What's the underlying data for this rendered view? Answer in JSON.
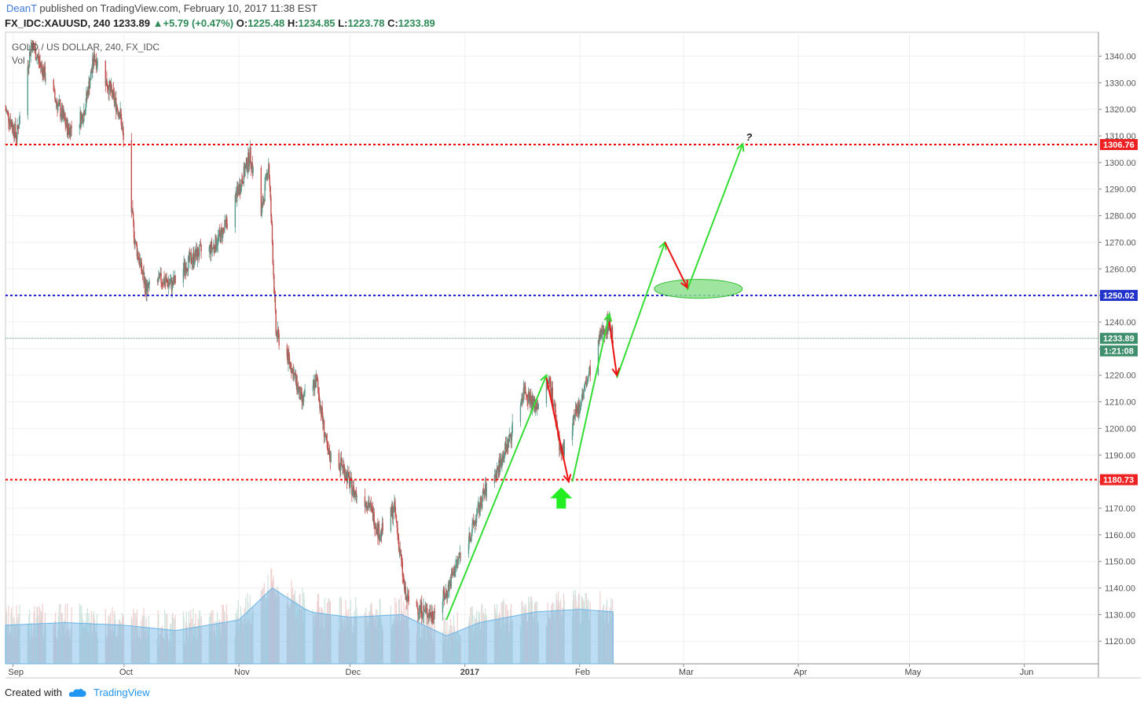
{
  "header": {
    "author": "DeanT",
    "published_text": "published on TradingView.com, February 10, 2017 11:38 EST",
    "symbol": "FX_IDC:XAUUSD, 240",
    "last": "1233.89",
    "change": "+5.79 (+0.47%)",
    "o_label": "O:",
    "o_value": "1225.48",
    "h_label": "H:",
    "h_value": "1234.85",
    "l_label": "L:",
    "l_value": "1223.78",
    "c_label": "C:",
    "c_value": "1233.89"
  },
  "pane": {
    "title": "GOLD / US DOLLAR, 240, FX_IDC",
    "vol_label": "Vol"
  },
  "footer": {
    "created_with": "Created with",
    "brand": "TradingView"
  },
  "colors": {
    "up": "#5b9a8b",
    "down": "#c0504d",
    "vol_up": "#cfe3de",
    "vol_down": "#efcfcf",
    "vol_ma": "#6ab4e4",
    "red_level": "#ff0000",
    "blue_level": "#1b1bd6",
    "arrow_green": "#33dd33",
    "arrow_red": "#ee1111"
  },
  "chart_data": {
    "type": "candlestick",
    "title": "GOLD / US DOLLAR, 240, FX_IDC",
    "y_ticks": [
      1120,
      1130,
      1140,
      1150,
      1160,
      1170,
      1180,
      1190,
      1200,
      1210,
      1220,
      1230,
      1240,
      1250,
      1260,
      1270,
      1280,
      1290,
      1300,
      1310,
      1320,
      1330,
      1340
    ],
    "y_tick_format": "decimals2",
    "ylim": [
      1111.5,
      1349
    ],
    "x_labels": [
      {
        "label": "Sep",
        "date": "2016-09-01",
        "bold": false
      },
      {
        "label": "Oct",
        "date": "2016-10-01",
        "bold": false
      },
      {
        "label": "Nov",
        "date": "2016-11-01",
        "bold": false
      },
      {
        "label": "Dec",
        "date": "2016-12-01",
        "bold": false
      },
      {
        "label": "2017",
        "date": "2017-01-01",
        "bold": true
      },
      {
        "label": "Feb",
        "date": "2017-02-01",
        "bold": false
      },
      {
        "label": "Mar",
        "date": "2017-03-01",
        "bold": false
      },
      {
        "label": "Apr",
        "date": "2017-04-01",
        "bold": false
      },
      {
        "label": "May",
        "date": "2017-05-01",
        "bold": false
      },
      {
        "label": "Jun",
        "date": "2017-06-01",
        "bold": false
      }
    ],
    "price_path": [
      [
        "2016-08-30",
        1320
      ],
      [
        "2016-09-02",
        1310
      ],
      [
        "2016-09-06",
        1345
      ],
      [
        "2016-09-09",
        1335
      ],
      [
        "2016-09-13",
        1322
      ],
      [
        "2016-09-16",
        1312
      ],
      [
        "2016-09-20",
        1318
      ],
      [
        "2016-09-23",
        1340
      ],
      [
        "2016-09-27",
        1328
      ],
      [
        "2016-09-30",
        1318
      ],
      [
        "2016-10-04",
        1270
      ],
      [
        "2016-10-07",
        1252
      ],
      [
        "2016-10-11",
        1256
      ],
      [
        "2016-10-14",
        1254
      ],
      [
        "2016-10-18",
        1262
      ],
      [
        "2016-10-21",
        1266
      ],
      [
        "2016-10-25",
        1268
      ],
      [
        "2016-10-28",
        1275
      ],
      [
        "2016-11-01",
        1290
      ],
      [
        "2016-11-04",
        1303
      ],
      [
        "2016-11-07",
        1280
      ],
      [
        "2016-11-09",
        1300
      ],
      [
        "2016-11-10",
        1270
      ],
      [
        "2016-11-11",
        1236
      ],
      [
        "2016-11-15",
        1224
      ],
      [
        "2016-11-18",
        1210
      ],
      [
        "2016-11-22",
        1218
      ],
      [
        "2016-11-25",
        1190
      ],
      [
        "2016-11-29",
        1186
      ],
      [
        "2016-12-02",
        1176
      ],
      [
        "2016-12-06",
        1172
      ],
      [
        "2016-12-09",
        1160
      ],
      [
        "2016-12-13",
        1170
      ],
      [
        "2016-12-16",
        1136
      ],
      [
        "2016-12-20",
        1132
      ],
      [
        "2016-12-23",
        1130
      ],
      [
        "2016-12-27",
        1138
      ],
      [
        "2016-12-30",
        1150
      ],
      [
        "2017-01-03",
        1162
      ],
      [
        "2017-01-06",
        1175
      ],
      [
        "2017-01-10",
        1185
      ],
      [
        "2017-01-13",
        1196
      ],
      [
        "2017-01-17",
        1215
      ],
      [
        "2017-01-20",
        1208
      ],
      [
        "2017-01-24",
        1218
      ],
      [
        "2017-01-27",
        1190
      ],
      [
        "2017-01-31",
        1205
      ],
      [
        "2017-02-03",
        1218
      ],
      [
        "2017-02-07",
        1236
      ],
      [
        "2017-02-09",
        1240
      ],
      [
        "2017-02-10",
        1233.89
      ]
    ],
    "volume_ma_path": [
      [
        "2016-08-30",
        1126
      ],
      [
        "2016-09-15",
        1127
      ],
      [
        "2016-10-01",
        1126
      ],
      [
        "2016-10-15",
        1124
      ],
      [
        "2016-11-01",
        1128
      ],
      [
        "2016-11-10",
        1140
      ],
      [
        "2016-11-20",
        1131
      ],
      [
        "2016-12-01",
        1129
      ],
      [
        "2016-12-15",
        1130
      ],
      [
        "2016-12-27",
        1122
      ],
      [
        "2017-01-05",
        1127
      ],
      [
        "2017-01-20",
        1131
      ],
      [
        "2017-02-01",
        1132
      ],
      [
        "2017-02-10",
        1131
      ]
    ],
    "levels": [
      {
        "name": "resistance",
        "value": 1306.76,
        "label": "1306.76",
        "style": "red-dotted"
      },
      {
        "name": "pivot",
        "value": 1250.02,
        "label": "1250.02",
        "style": "blue-dotted"
      },
      {
        "name": "support",
        "value": 1180.73,
        "label": "1180.73",
        "style": "red-dotted"
      },
      {
        "name": "last-price",
        "value": 1233.89,
        "label": "1233.89",
        "style": "green-thin"
      }
    ],
    "countdown_label": "1:21:08",
    "annotations": {
      "question_mark": "?",
      "big_arrow_date": "2017-01-27",
      "big_arrow_price": 1174,
      "ellipse": {
        "date": "2017-03-05",
        "price": 1252.5
      },
      "green_arrows": [
        [
          [
            "2016-12-27",
            1128
          ],
          [
            "2017-01-23",
            1220
          ]
        ],
        [
          [
            "2017-01-30",
            1180
          ],
          [
            "2017-02-09",
            1243
          ]
        ],
        [
          [
            "2017-02-11",
            1219
          ],
          [
            "2017-02-24",
            1270
          ]
        ],
        [
          [
            "2017-03-02",
            1252
          ],
          [
            "2017-03-17",
            1307
          ]
        ]
      ],
      "red_arrows": [
        [
          [
            "2017-01-23",
            1219
          ],
          [
            "2017-01-29",
            1180
          ]
        ],
        [
          [
            "2017-02-09",
            1240
          ],
          [
            "2017-02-11",
            1220
          ]
        ],
        [
          [
            "2017-02-24",
            1270
          ],
          [
            "2017-03-02",
            1253
          ]
        ]
      ]
    }
  }
}
